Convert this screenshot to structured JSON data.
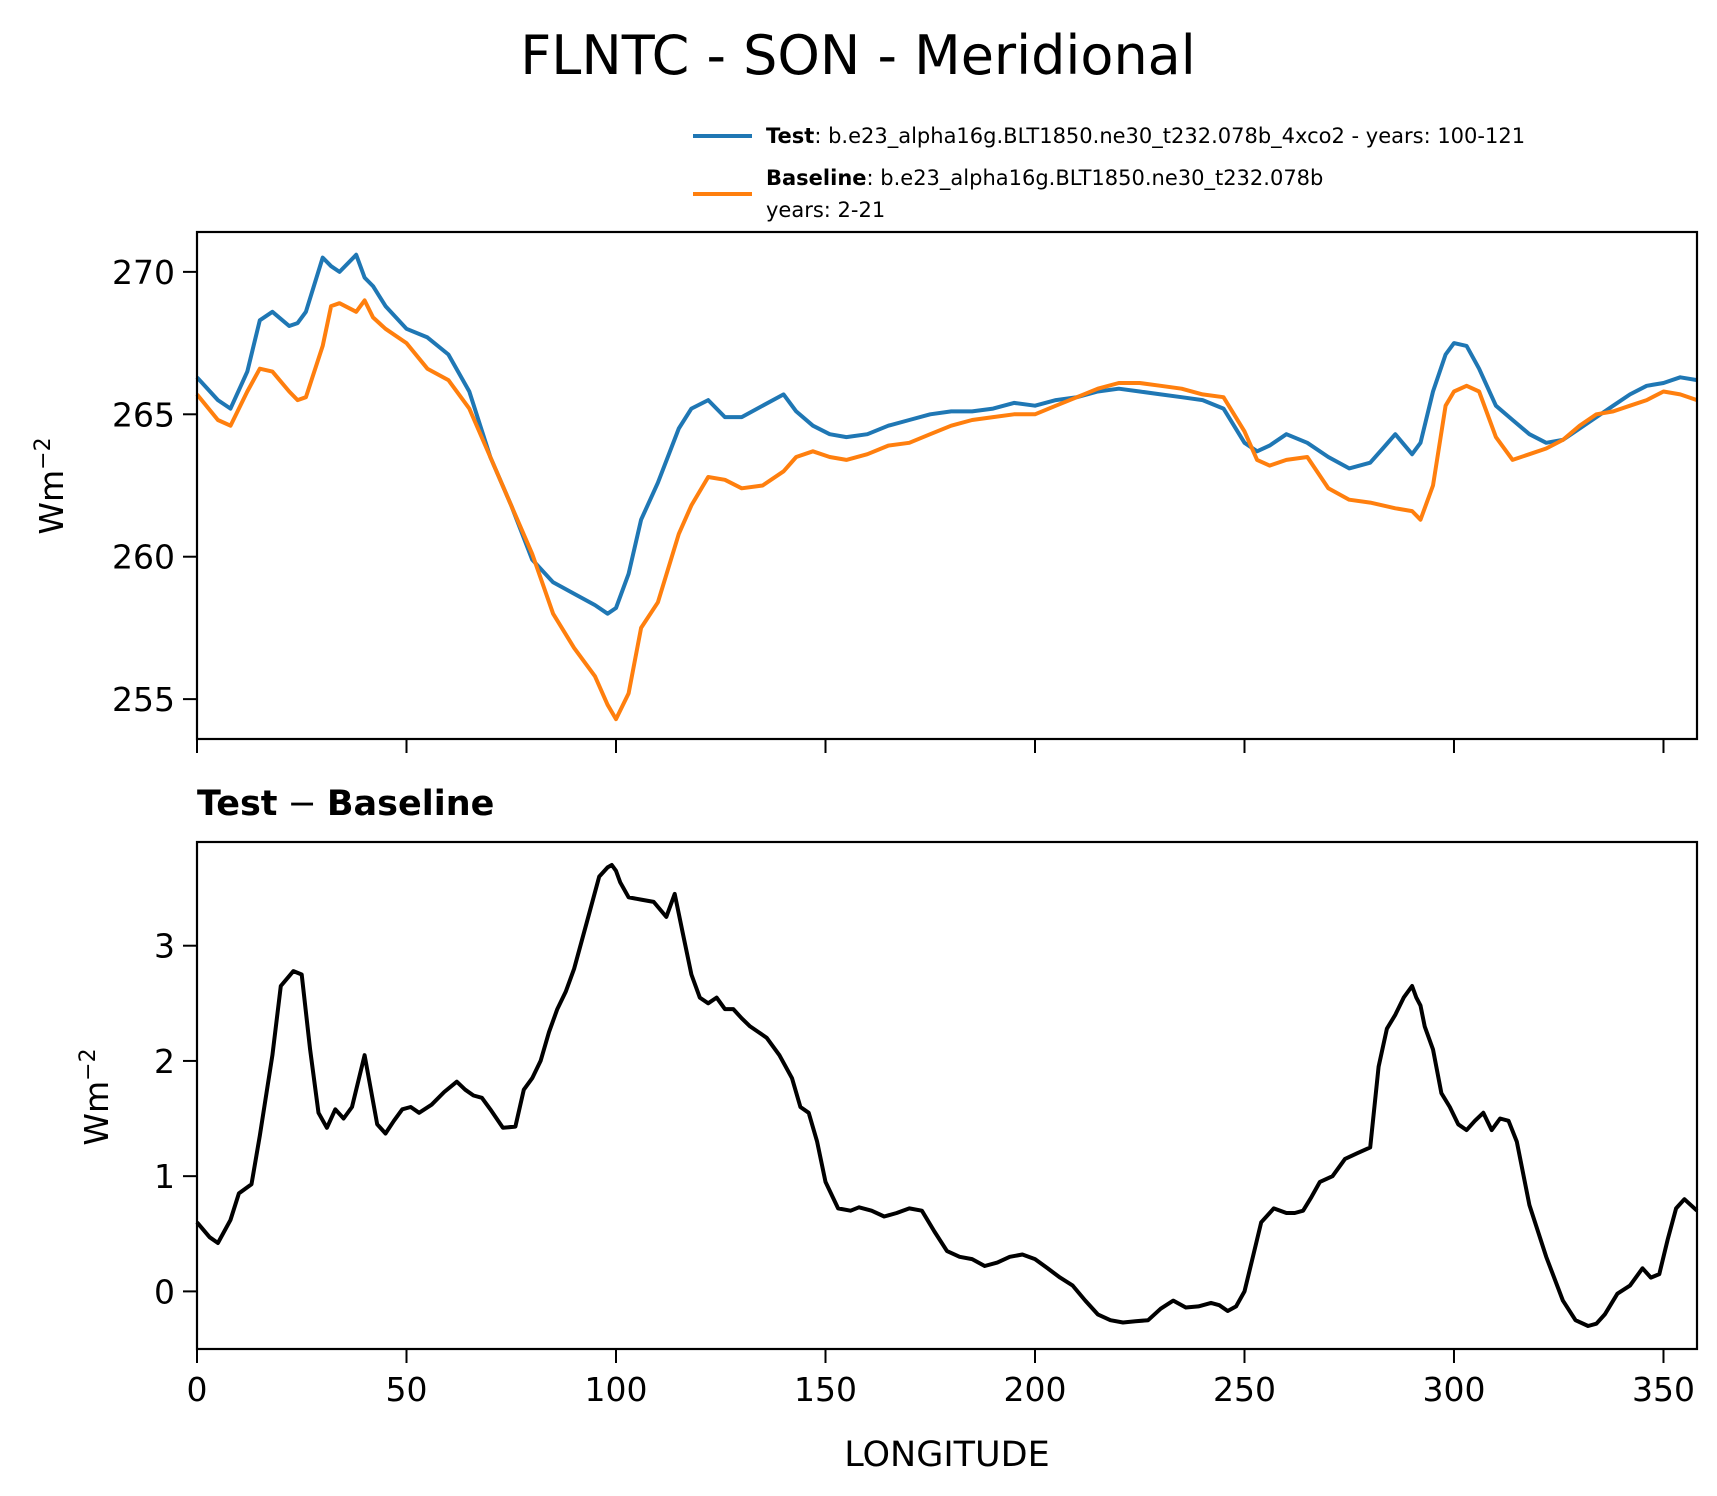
{
  "figure": {
    "title": "FLNTC - SON - Meridional",
    "legend": {
      "test_label": "Test",
      "test_text": ": b.e23_alpha16g.BLT1850.ne30_t232.078b_4xco2 - years: 100-121",
      "baseline_label": "Baseline",
      "baseline_text": ": b.e23_alpha16g.BLT1850.ne30_t232.078b",
      "baseline_text2": "years: 2-21"
    },
    "top_ylabel": "Wm",
    "bottom_ylabel": "Wm",
    "ylabel_exp": "−2",
    "bottom_title_a": "Test",
    "bottom_title_op": "−",
    "bottom_title_b": "Baseline",
    "xlabel": "LONGITUDE"
  },
  "colors": {
    "test": "#1f77b4",
    "baseline": "#ff7f0e",
    "difference": "#000000"
  },
  "chart_data": [
    {
      "type": "line",
      "xlim": [
        0,
        358
      ],
      "ylim": [
        253.6,
        271.4
      ],
      "x_ticks": [
        0,
        50,
        100,
        150,
        200,
        250,
        300,
        350
      ],
      "y_ticks": [
        255,
        260,
        265,
        270
      ],
      "y_tick_labels": [
        "255",
        "260",
        "265",
        "270"
      ],
      "legend_position": "above",
      "grid": false,
      "series": [
        {
          "name": "Test",
          "x": [
            0,
            5,
            8,
            12,
            15,
            18,
            22,
            24,
            26,
            30,
            32,
            34,
            38,
            40,
            42,
            45,
            50,
            55,
            60,
            65,
            70,
            75,
            80,
            85,
            90,
            95,
            98,
            100,
            103,
            106,
            110,
            115,
            118,
            122,
            126,
            130,
            135,
            140,
            143,
            147,
            151,
            155,
            160,
            165,
            170,
            175,
            180,
            185,
            190,
            195,
            200,
            205,
            210,
            215,
            220,
            225,
            230,
            235,
            240,
            245,
            250,
            253,
            256,
            260,
            265,
            270,
            275,
            280,
            283,
            286,
            290,
            292,
            295,
            298,
            300,
            303,
            306,
            310,
            314,
            318,
            322,
            326,
            330,
            334,
            338,
            342,
            346,
            350,
            354,
            358
          ],
          "y": [
            266.3,
            265.5,
            265.2,
            266.5,
            268.3,
            268.6,
            268.1,
            268.2,
            268.6,
            270.5,
            270.2,
            270.0,
            270.6,
            269.8,
            269.5,
            268.8,
            268.0,
            267.7,
            267.1,
            265.8,
            263.5,
            261.8,
            259.9,
            259.1,
            258.7,
            258.3,
            258.0,
            258.2,
            259.4,
            261.3,
            262.6,
            264.5,
            265.2,
            265.5,
            264.9,
            264.9,
            265.3,
            265.7,
            265.1,
            264.6,
            264.3,
            264.2,
            264.3,
            264.6,
            264.8,
            265.0,
            265.1,
            265.1,
            265.2,
            265.4,
            265.3,
            265.5,
            265.6,
            265.8,
            265.9,
            265.8,
            265.7,
            265.6,
            265.5,
            265.2,
            264.0,
            263.7,
            263.9,
            264.3,
            264.0,
            263.5,
            263.1,
            263.3,
            263.8,
            264.3,
            263.6,
            264.0,
            265.8,
            267.1,
            267.5,
            267.4,
            266.6,
            265.3,
            264.8,
            264.3,
            264.0,
            264.1,
            264.5,
            264.9,
            265.3,
            265.7,
            266.0,
            266.1,
            266.3,
            266.2
          ]
        },
        {
          "name": "Baseline",
          "x": [
            0,
            5,
            8,
            12,
            15,
            18,
            22,
            24,
            26,
            30,
            32,
            34,
            38,
            40,
            42,
            45,
            50,
            55,
            60,
            65,
            70,
            75,
            80,
            85,
            90,
            95,
            98,
            100,
            103,
            106,
            110,
            115,
            118,
            122,
            126,
            130,
            135,
            140,
            143,
            147,
            151,
            155,
            160,
            165,
            170,
            175,
            180,
            185,
            190,
            195,
            200,
            205,
            210,
            215,
            220,
            225,
            230,
            235,
            240,
            245,
            250,
            253,
            256,
            260,
            265,
            270,
            275,
            280,
            283,
            286,
            290,
            292,
            295,
            298,
            300,
            303,
            306,
            310,
            314,
            318,
            322,
            326,
            330,
            334,
            338,
            342,
            346,
            350,
            354,
            358
          ],
          "y": [
            265.7,
            264.8,
            264.6,
            265.8,
            266.6,
            266.5,
            265.8,
            265.5,
            265.6,
            267.4,
            268.8,
            268.9,
            268.6,
            269.0,
            268.4,
            268.0,
            267.5,
            266.6,
            266.2,
            265.2,
            263.5,
            261.8,
            260.1,
            258.0,
            256.8,
            255.8,
            254.8,
            254.3,
            255.2,
            257.5,
            258.4,
            260.8,
            261.8,
            262.8,
            262.7,
            262.4,
            262.5,
            263.0,
            263.5,
            263.7,
            263.5,
            263.4,
            263.6,
            263.9,
            264.0,
            264.3,
            264.6,
            264.8,
            264.9,
            265.0,
            265.0,
            265.3,
            265.6,
            265.9,
            266.1,
            266.1,
            266.0,
            265.9,
            265.7,
            265.6,
            264.4,
            263.4,
            263.2,
            263.4,
            263.5,
            262.4,
            262.0,
            261.9,
            261.8,
            261.7,
            261.6,
            261.3,
            262.5,
            265.3,
            265.8,
            266.0,
            265.8,
            264.2,
            263.4,
            263.6,
            263.8,
            264.1,
            264.6,
            265.0,
            265.1,
            265.3,
            265.5,
            265.8,
            265.7,
            265.5
          ]
        }
      ]
    },
    {
      "type": "line",
      "title": "Test − Baseline",
      "xlabel": "LONGITUDE",
      "xlim": [
        0,
        358
      ],
      "ylim": [
        -0.5,
        3.9
      ],
      "x_ticks": [
        0,
        50,
        100,
        150,
        200,
        250,
        300,
        350
      ],
      "x_tick_labels": [
        "0",
        "50",
        "100",
        "150",
        "200",
        "250",
        "300",
        "350"
      ],
      "y_ticks": [
        0,
        1,
        2,
        3
      ],
      "y_tick_labels": [
        "0",
        "1",
        "2",
        "3"
      ],
      "grid": false,
      "series": [
        {
          "x": [
            0,
            3,
            5,
            8,
            10,
            13,
            15,
            18,
            20,
            23,
            25,
            27,
            29,
            31,
            33,
            35,
            37,
            40,
            43,
            45,
            47,
            49,
            51,
            53,
            56,
            59,
            62,
            64,
            66,
            68,
            70,
            73,
            76,
            78,
            80,
            82,
            84,
            86,
            88,
            90,
            93,
            96,
            98,
            99,
            100,
            101,
            103,
            106,
            109,
            112,
            114,
            116,
            118,
            120,
            122,
            124,
            126,
            128,
            130,
            132,
            134,
            136,
            139,
            142,
            144,
            146,
            148,
            150,
            153,
            156,
            158,
            161,
            164,
            167,
            170,
            173,
            176,
            179,
            182,
            185,
            188,
            191,
            194,
            197,
            200,
            203,
            206,
            209,
            212,
            215,
            218,
            221,
            224,
            227,
            230,
            233,
            236,
            239,
            242,
            244,
            246,
            248,
            250,
            252,
            254,
            257,
            260,
            262,
            264,
            266,
            268,
            271,
            274,
            277,
            280,
            282,
            284,
            286,
            288,
            290,
            291,
            292,
            293,
            295,
            297,
            299,
            301,
            303,
            305,
            307,
            309,
            311,
            313,
            315,
            318,
            322,
            326,
            329,
            332,
            334,
            336,
            339,
            342,
            345,
            347,
            349,
            351,
            353,
            355,
            358
          ],
          "y": [
            0.6,
            0.47,
            0.42,
            0.62,
            0.85,
            0.93,
            1.35,
            2.05,
            2.65,
            2.78,
            2.75,
            2.1,
            1.55,
            1.42,
            1.58,
            1.5,
            1.6,
            2.05,
            1.45,
            1.37,
            1.48,
            1.58,
            1.6,
            1.55,
            1.62,
            1.73,
            1.82,
            1.75,
            1.7,
            1.68,
            1.58,
            1.42,
            1.43,
            1.75,
            1.85,
            2.0,
            2.25,
            2.45,
            2.6,
            2.8,
            3.2,
            3.6,
            3.68,
            3.7,
            3.65,
            3.55,
            3.42,
            3.4,
            3.38,
            3.25,
            3.45,
            3.1,
            2.75,
            2.55,
            2.5,
            2.55,
            2.45,
            2.45,
            2.37,
            2.3,
            2.25,
            2.2,
            2.05,
            1.85,
            1.6,
            1.55,
            1.3,
            0.95,
            0.72,
            0.7,
            0.73,
            0.7,
            0.65,
            0.68,
            0.72,
            0.7,
            0.52,
            0.35,
            0.3,
            0.28,
            0.22,
            0.25,
            0.3,
            0.32,
            0.28,
            0.2,
            0.12,
            0.05,
            -0.08,
            -0.2,
            -0.25,
            -0.27,
            -0.26,
            -0.25,
            -0.15,
            -0.08,
            -0.14,
            -0.13,
            -0.1,
            -0.12,
            -0.17,
            -0.13,
            0.0,
            0.3,
            0.6,
            0.72,
            0.68,
            0.68,
            0.7,
            0.82,
            0.95,
            1.0,
            1.15,
            1.2,
            1.25,
            1.95,
            2.28,
            2.4,
            2.55,
            2.65,
            2.55,
            2.48,
            2.3,
            2.1,
            1.72,
            1.6,
            1.45,
            1.4,
            1.48,
            1.55,
            1.4,
            1.5,
            1.48,
            1.3,
            0.75,
            0.3,
            -0.08,
            -0.25,
            -0.3,
            -0.28,
            -0.2,
            -0.02,
            0.05,
            0.2,
            0.12,
            0.15,
            0.45,
            0.72,
            0.8,
            0.7
          ]
        }
      ]
    }
  ]
}
